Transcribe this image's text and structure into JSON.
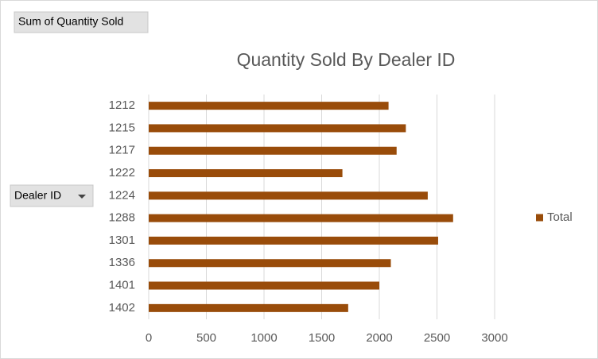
{
  "chart_data": {
    "type": "bar",
    "orientation": "horizontal",
    "title": "Quantity Sold By Dealer ID",
    "value_field": "Sum of Quantity Sold",
    "axis_field": "Dealer ID",
    "categories": [
      "1212",
      "1215",
      "1217",
      "1222",
      "1224",
      "1288",
      "1301",
      "1336",
      "1401",
      "1402"
    ],
    "series": [
      {
        "name": "Total",
        "color": "#994c0a",
        "values": [
          2080,
          2230,
          2150,
          1680,
          2420,
          2640,
          2510,
          2100,
          2000,
          1730
        ]
      }
    ],
    "xlim": [
      0,
      3000
    ],
    "xticks": [
      0,
      500,
      1000,
      1500,
      2000,
      2500,
      3000
    ],
    "grid": true,
    "legend": "right"
  }
}
